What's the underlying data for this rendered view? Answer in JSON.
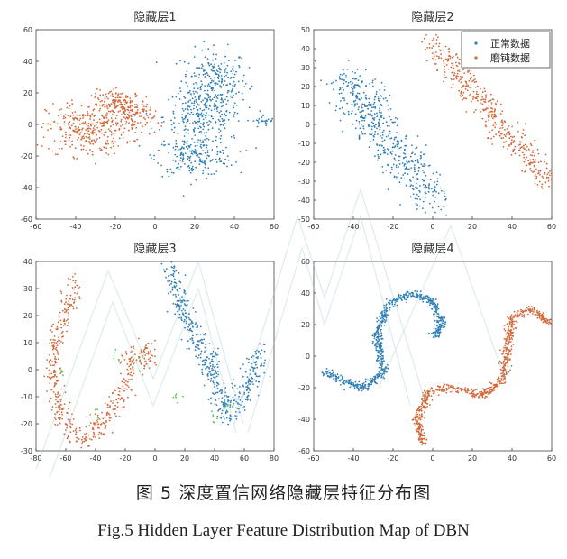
{
  "caption": {
    "chinese": "图 5   深度置信网络隐藏层特征分布图",
    "english": "Fig.5 Hidden Layer Feature Distribution Map of DBN"
  },
  "colors": {
    "normal": "#2f7fb5",
    "abrasion": "#d2683a",
    "extra": "#5fbe4f",
    "axis": "#444444"
  },
  "chart_data": [
    {
      "type": "scatter",
      "title": "隐藏层1",
      "xlim": [
        -60,
        60
      ],
      "ylim": [
        -60,
        60
      ],
      "xticks": [
        -60,
        -40,
        -20,
        0,
        20,
        40,
        60
      ],
      "yticks": [
        -60,
        -40,
        -20,
        0,
        20,
        40,
        60
      ],
      "legend": null,
      "series": [
        {
          "name": "正常数据",
          "color": "#2f7fb5",
          "clusters": [
            {
              "cx": 30,
              "cy": 28,
              "sx": 12,
              "sy": 14,
              "n": 220
            },
            {
              "cx": 24,
              "cy": 5,
              "sx": 14,
              "sy": 12,
              "n": 240
            },
            {
              "cx": 20,
              "cy": -20,
              "sx": 14,
              "sy": 9,
              "n": 200
            },
            {
              "cx": 55,
              "cy": 2,
              "sx": 4,
              "sy": 3,
              "n": 25
            }
          ]
        },
        {
          "name": "磨钝数据",
          "color": "#d2683a",
          "clusters": [
            {
              "cx": -35,
              "cy": -3,
              "sx": 14,
              "sy": 12,
              "n": 300
            },
            {
              "cx": -18,
              "cy": 13,
              "sx": 10,
              "sy": 6,
              "n": 160
            },
            {
              "cx": -10,
              "cy": 3,
              "sx": 7,
              "sy": 8,
              "n": 90
            }
          ]
        }
      ]
    },
    {
      "type": "scatter",
      "title": "隐藏层2",
      "xlim": [
        -60,
        60
      ],
      "ylim": [
        -50,
        50
      ],
      "xticks": [
        -60,
        -40,
        -20,
        0,
        20,
        40,
        60
      ],
      "yticks": [
        -50,
        -40,
        -30,
        -20,
        -10,
        0,
        10,
        20,
        30,
        40,
        50
      ],
      "legend": {
        "position": "top-right",
        "entries": [
          "正常数据",
          "磨钝数据"
        ]
      },
      "series": [
        {
          "name": "正常数据",
          "color": "#2f7fb5",
          "band": {
            "x0": -45,
            "y0": 25,
            "x1": 0,
            "y1": -40,
            "width": 8,
            "n": 520
          }
        },
        {
          "name": "磨钝数据",
          "color": "#d2683a",
          "band": {
            "x0": 0,
            "y0": 42,
            "x1": 58,
            "y1": -30,
            "width": 5,
            "n": 420
          }
        }
      ]
    },
    {
      "type": "scatter",
      "title": "隐藏层3",
      "xlim": [
        -80,
        80
      ],
      "ylim": [
        -30,
        40
      ],
      "xticks": [
        -80,
        -60,
        -40,
        -20,
        0,
        20,
        40,
        60,
        80
      ],
      "yticks": [
        -30,
        -20,
        -10,
        0,
        10,
        20,
        30,
        40
      ],
      "legend": null,
      "series": [
        {
          "name": "正常数据",
          "color": "#2f7fb5",
          "curve": [
            [
              10,
              38
            ],
            [
              20,
              20
            ],
            [
              35,
              5
            ],
            [
              40,
              -5
            ],
            [
              48,
              -15
            ],
            [
              60,
              -10
            ],
            [
              72,
              8
            ]
          ],
          "spread": 3,
          "n": 480
        },
        {
          "name": "磨钝数据",
          "color": "#d2683a",
          "curve": [
            [
              -52,
              33
            ],
            [
              -65,
              15
            ],
            [
              -70,
              0
            ],
            [
              -65,
              -15
            ],
            [
              -50,
              -27
            ],
            [
              -35,
              -20
            ],
            [
              -20,
              -5
            ],
            [
              -15,
              5
            ],
            [
              0,
              5
            ]
          ],
          "spread": 2.5,
          "n": 500
        }
      ]
    },
    {
      "type": "scatter",
      "title": "隐藏层4",
      "xlim": [
        -60,
        60
      ],
      "ylim": [
        -60,
        60
      ],
      "xticks": [
        -60,
        -40,
        -20,
        0,
        20,
        40,
        60
      ],
      "yticks": [
        -60,
        -40,
        -20,
        0,
        20,
        40,
        60
      ],
      "legend": null,
      "series": [
        {
          "name": "正常数据",
          "color": "#2f7fb5",
          "curve": [
            [
              -55,
              -10
            ],
            [
              -35,
              -20
            ],
            [
              -25,
              -10
            ],
            [
              -28,
              15
            ],
            [
              -22,
              33
            ],
            [
              -10,
              40
            ],
            [
              0,
              35
            ],
            [
              5,
              20
            ],
            [
              0,
              12
            ]
          ],
          "spread": 1.2,
          "n": 700
        },
        {
          "name": "磨钝数据",
          "color": "#d2683a",
          "curve": [
            [
              -5,
              -55
            ],
            [
              -8,
              -40
            ],
            [
              -2,
              -22
            ],
            [
              10,
              -20
            ],
            [
              25,
              -25
            ],
            [
              35,
              -15
            ],
            [
              38,
              5
            ],
            [
              40,
              25
            ],
            [
              50,
              30
            ],
            [
              60,
              20
            ]
          ],
          "spread": 1.2,
          "n": 700
        }
      ]
    }
  ]
}
